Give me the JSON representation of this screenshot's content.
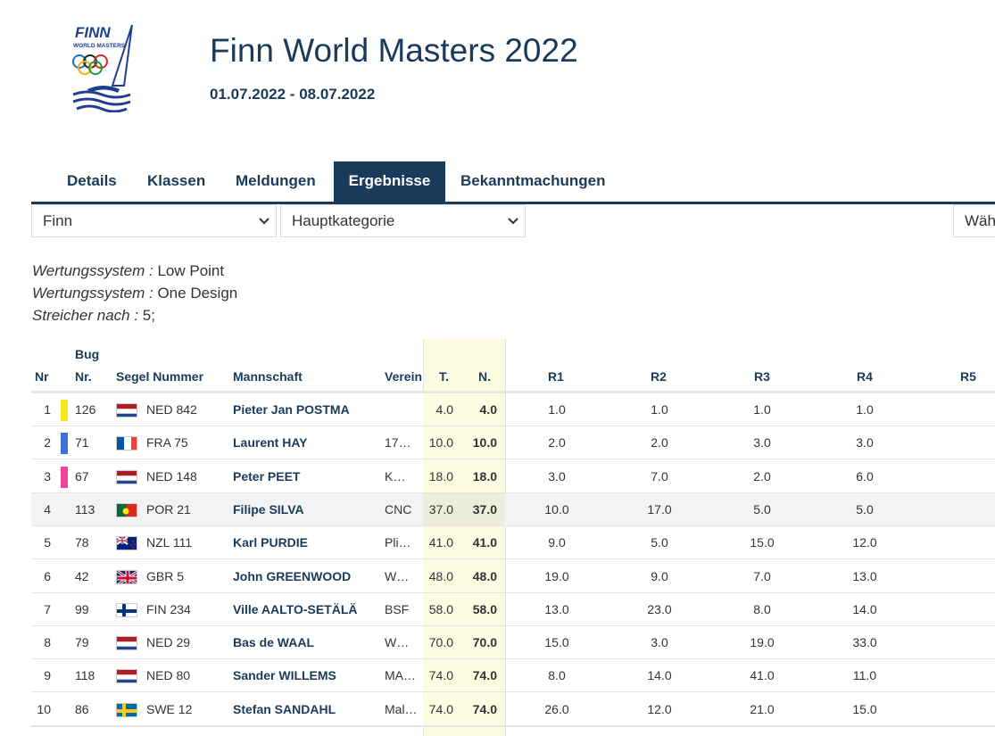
{
  "logo": {
    "text_top": "FINN",
    "text_sub": "WORLD MASTERS"
  },
  "event": {
    "title": "Finn World Masters 2022",
    "dates": "01.07.2022 - 08.07.2022"
  },
  "tabs": [
    {
      "label": "Details",
      "active": false
    },
    {
      "label": "Klassen",
      "active": false
    },
    {
      "label": "Meldungen",
      "active": false
    },
    {
      "label": "Ergebnisse",
      "active": true
    },
    {
      "label": "Bekanntmachungen",
      "active": false
    }
  ],
  "filters": {
    "class_select": "Finn",
    "category_select": "Hauptkategorie",
    "right_select": "Wäh"
  },
  "info": [
    {
      "label": "Wertungssystem :",
      "value": " Low Point"
    },
    {
      "label": "Wertungssystem :",
      "value": " One Design"
    },
    {
      "label": "Streicher nach :",
      "value": " 5;"
    }
  ],
  "table": {
    "headers": {
      "nr": "Nr",
      "bug_top": "Bug",
      "bug_bottom": "Nr.",
      "sail": "Segel Nummer",
      "crew": "Mannschaft",
      "club": "Verein",
      "total": "T.",
      "net": "N.",
      "r1": "R1",
      "r2": "R2",
      "r3": "R3",
      "r4": "R4",
      "r5": "R5"
    },
    "rows": [
      {
        "nr": "1",
        "color": "#f7e51d",
        "bug": "126",
        "flag": "ned",
        "sail": "NED 842",
        "crew": "Pieter Jan POSTMA",
        "club": "",
        "total": "4.0",
        "net": "4.0",
        "r1": "1.0",
        "r2": "1.0",
        "r3": "1.0",
        "r4": "1.0",
        "highlight": false
      },
      {
        "nr": "2",
        "color": "#3f6fd6",
        "bug": "71",
        "flag": "fra",
        "sail": "FRA 75",
        "crew": "Laurent HAY",
        "club": "17…",
        "total": "10.0",
        "net": "10.0",
        "r1": "2.0",
        "r2": "2.0",
        "r3": "3.0",
        "r4": "3.0",
        "highlight": false
      },
      {
        "nr": "3",
        "color": "#f0449a",
        "bug": "67",
        "flag": "ned",
        "sail": "NED 148",
        "crew": "Peter PEET",
        "club": "K…",
        "total": "18.0",
        "net": "18.0",
        "r1": "3.0",
        "r2": "7.0",
        "r3": "2.0",
        "r4": "6.0",
        "highlight": false
      },
      {
        "nr": "4",
        "color": "",
        "bug": "113",
        "flag": "por",
        "sail": "POR 21",
        "crew": "Filipe SILVA",
        "club": "CNC",
        "total": "37.0",
        "net": "37.0",
        "r1": "10.0",
        "r2": "17.0",
        "r3": "5.0",
        "r4": "5.0",
        "highlight": true
      },
      {
        "nr": "5",
        "color": "",
        "bug": "78",
        "flag": "nzl",
        "sail": "NZL 111",
        "crew": "Karl PURDIE",
        "club": "Pli…",
        "total": "41.0",
        "net": "41.0",
        "r1": "9.0",
        "r2": "5.0",
        "r3": "15.0",
        "r4": "12.0",
        "highlight": false
      },
      {
        "nr": "6",
        "color": "",
        "bug": "42",
        "flag": "gbr",
        "sail": "GBR 5",
        "crew": "John GREENWOOD",
        "club": "W…",
        "total": "48.0",
        "net": "48.0",
        "r1": "19.0",
        "r2": "9.0",
        "r3": "7.0",
        "r4": "13.0",
        "highlight": false
      },
      {
        "nr": "7",
        "color": "",
        "bug": "99",
        "flag": "fin",
        "sail": "FIN 234",
        "crew": "Ville AALTO-SETÄLÄ",
        "club": "BSF",
        "total": "58.0",
        "net": "58.0",
        "r1": "13.0",
        "r2": "23.0",
        "r3": "8.0",
        "r4": "14.0",
        "highlight": false
      },
      {
        "nr": "8",
        "color": "",
        "bug": "79",
        "flag": "ned",
        "sail": "NED 29",
        "crew": "Bas de WAAL",
        "club": "W…",
        "total": "70.0",
        "net": "70.0",
        "r1": "15.0",
        "r2": "3.0",
        "r3": "19.0",
        "r4": "33.0",
        "highlight": false
      },
      {
        "nr": "9",
        "color": "",
        "bug": "118",
        "flag": "ned",
        "sail": "NED 80",
        "crew": "Sander WILLEMS",
        "club": "MA…",
        "total": "74.0",
        "net": "74.0",
        "r1": "8.0",
        "r2": "14.0",
        "r3": "41.0",
        "r4": "11.0",
        "highlight": false
      },
      {
        "nr": "10",
        "color": "",
        "bug": "86",
        "flag": "swe",
        "sail": "SWE 12",
        "crew": "Stefan SANDAHL",
        "club": "Mal…",
        "total": "74.0",
        "net": "74.0",
        "r1": "26.0",
        "r2": "12.0",
        "r3": "21.0",
        "r4": "15.0",
        "highlight": false
      }
    ]
  }
}
